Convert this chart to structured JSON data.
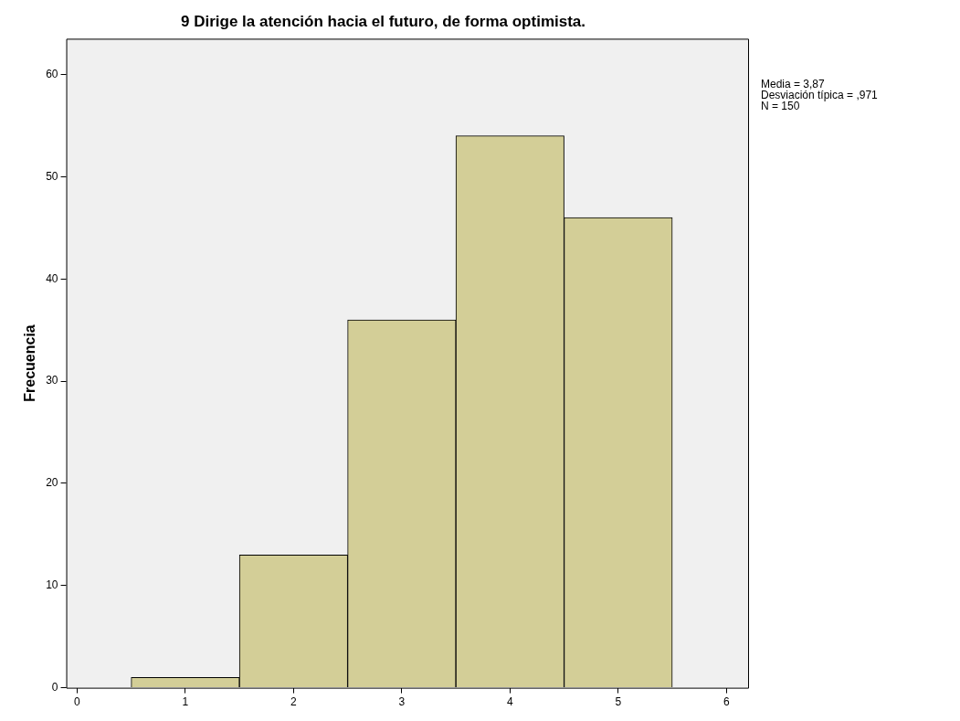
{
  "chart_data": {
    "type": "histogram",
    "title": "9 Dirige la atención hacia el futuro, de forma optimista.",
    "ylabel": "Frecuencia",
    "bins": [
      0.5,
      1.5,
      2.5,
      3.5,
      4.5,
      5.5
    ],
    "values": [
      1,
      13,
      36,
      54,
      46
    ],
    "color": "#d3ce97",
    "xlim": [
      -0.1,
      6.2
    ],
    "xticks": [
      0,
      1,
      2,
      3,
      4,
      5,
      6
    ],
    "ylim": [
      0,
      63.5
    ],
    "yticks": [
      0,
      10,
      20,
      30,
      40,
      50,
      60
    ],
    "grid": false,
    "legend": false,
    "annotations": [
      "Media = 3,87",
      "Desviación típica = ,971",
      "N = 150"
    ]
  }
}
